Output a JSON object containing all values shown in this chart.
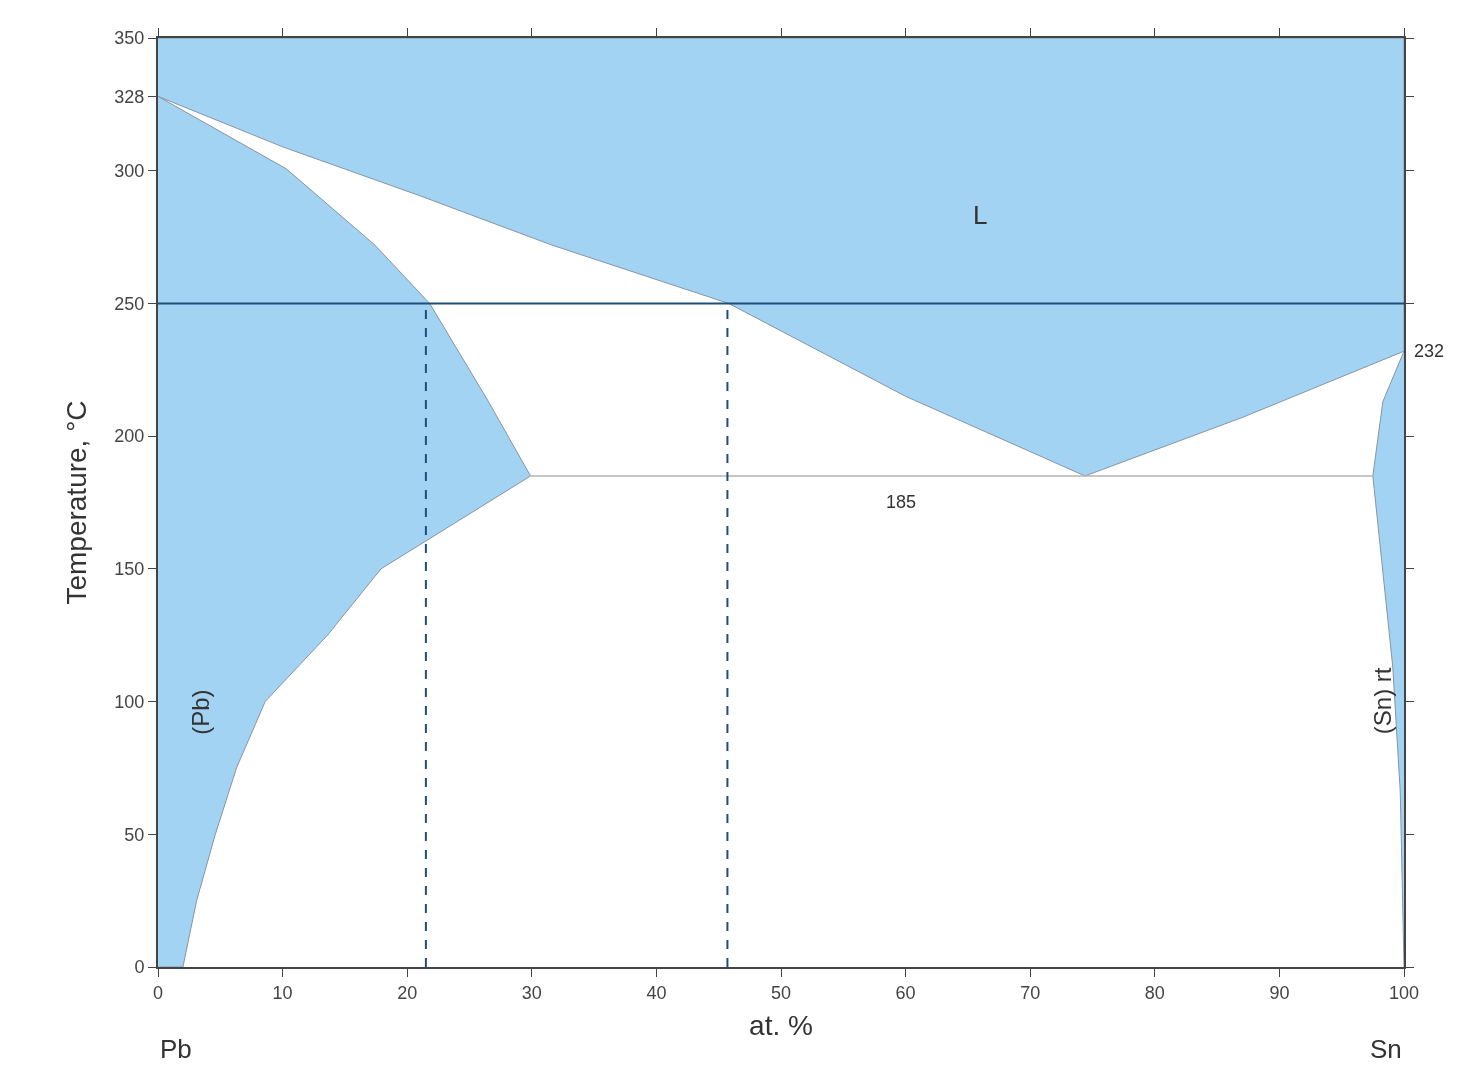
{
  "chart_data": {
    "type": "area",
    "xlabel": "at. %",
    "ylabel": "Temperature, °C",
    "xlim": [
      0,
      100
    ],
    "ylim": [
      0,
      350
    ],
    "xticks": [
      0,
      10,
      20,
      30,
      40,
      50,
      60,
      70,
      80,
      90,
      100
    ],
    "yticks": [
      0,
      50,
      100,
      150,
      200,
      250,
      300,
      328,
      350
    ],
    "grid": false,
    "series": [
      {
        "color": "#a3d3f2",
        "x": [
          0,
          10,
          21,
          31.6,
          45.8,
          60,
          74.4,
          87,
          100,
          100,
          0
        ],
        "values": [
          328,
          309,
          290.6,
          272,
          250,
          215,
          185,
          207,
          232,
          350,
          350
        ]
      },
      {
        "color": "#a3d3f2",
        "x": [
          0,
          10.3,
          17.4,
          21.8,
          26.4,
          29.9,
          17.9,
          13.6,
          8.6,
          6.3,
          4.6,
          3.1,
          2,
          0
        ],
        "values": [
          328,
          300.7,
          272,
          250,
          214,
          185,
          150,
          125,
          100,
          75,
          50,
          25,
          0,
          0
        ]
      },
      {
        "color": "#a3d3f2",
        "x": [
          100,
          98.3,
          97.5,
          99.1,
          99.7,
          100
        ],
        "values": [
          232,
          213,
          185,
          113,
          66,
          0
        ]
      },
      {
        "type": "line",
        "color": "#b3b3b3",
        "x": [
          29.9,
          97.5
        ],
        "values": [
          185,
          185
        ]
      }
    ],
    "ref_lines": [
      {
        "axis": "y",
        "value": 250,
        "color": "#1f4e79",
        "line_style": "solid"
      },
      {
        "axis": "x",
        "value": 21.5,
        "color": "#1f4e79",
        "line_style": "dashed"
      },
      {
        "axis": "x",
        "value": 45.7,
        "color": "#1f4e79",
        "line_style": "dashed"
      }
    ],
    "annotations": [
      "L",
      "(Pb)",
      "(Sn) rt",
      {
        "text": "185",
        "x": 59.6,
        "y": 185
      },
      {
        "text": "232",
        "x": 100,
        "y": 232
      },
      "Pb",
      "Sn"
    ]
  }
}
